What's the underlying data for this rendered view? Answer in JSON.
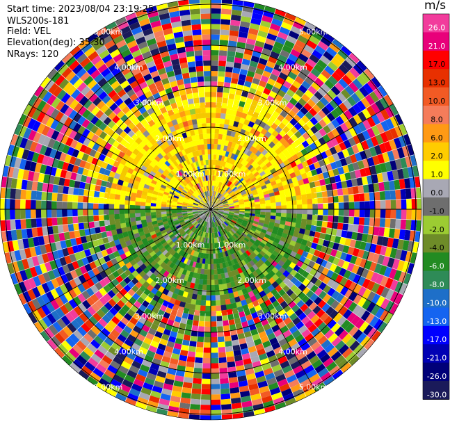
{
  "header": {
    "start_time": "Start time: 2023/08/04 23:19:25",
    "instrument": "WLS200s-181",
    "field": "Field: VEL",
    "elevation": "Elevation(deg): 35.30",
    "nrays": "NRays: 120"
  },
  "colorbar": {
    "unit": "m/s",
    "ticks": [
      "26.0",
      "21.0",
      "17.0",
      "13.0",
      "10.0",
      "8.0",
      "6.0",
      "2.0",
      "1.0",
      "0.0",
      "-1.0",
      "-2.0",
      "-4.0",
      "-6.0",
      "-8.0",
      "-10.0",
      "-13.0",
      "-17.0",
      "-21.0",
      "-26.0",
      "-30.0"
    ],
    "colors": [
      "#f23c9c",
      "#e8007a",
      "#ff0000",
      "#e83000",
      "#f25a24",
      "#f57c5a",
      "#ff9a14",
      "#ffcc00",
      "#ffff00",
      "#a8a8b4",
      "#6e6e6e",
      "#9ccc32",
      "#6e8c28",
      "#228b22",
      "#2e8b57",
      "#1e6fc8",
      "#1464f0",
      "#0000ff",
      "#0000b4",
      "#000078",
      "#1a1a5a"
    ]
  },
  "chart_data": {
    "type": "heatmap",
    "title": "",
    "projection": "polar plan-position indicator",
    "field": "VEL",
    "units": "m/s",
    "elevation_deg": 35.3,
    "nrays": 120,
    "range_ring_labels": [
      "1.00km",
      "2.00km",
      "3.00km",
      "4.00km",
      "5.00km"
    ],
    "range_rings_km": [
      1,
      2,
      3,
      4,
      5
    ],
    "spokes_deg": [
      0,
      30,
      60,
      90,
      120,
      150,
      180,
      210,
      240,
      270,
      300,
      330
    ],
    "colorbar_range": [
      -30,
      26
    ],
    "pattern": "near-range positive velocities (yellow/orange) to the north, negative velocities (green) to the south, noisy multicolor beyond ~2.3 km"
  }
}
